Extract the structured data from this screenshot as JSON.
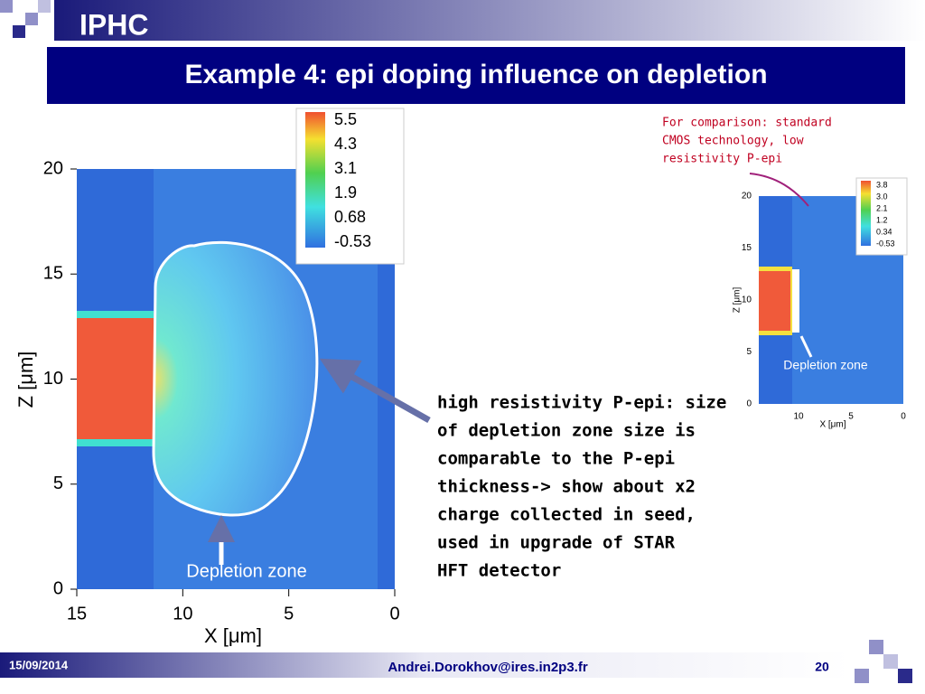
{
  "header": {
    "logo": "IPHC",
    "title": "Example 4: epi doping influence on depletion"
  },
  "main_plot": {
    "colorbar": [
      "5.5",
      "4.3",
      "3.1",
      "1.9",
      "0.68",
      "-0.53"
    ],
    "yticks": [
      "20",
      "15",
      "10",
      "5",
      "0"
    ],
    "xticks": [
      "15",
      "10",
      "5",
      "0"
    ],
    "ylabel": "Z [μm]",
    "xlabel": "X [μm]",
    "annotation": "Depletion zone"
  },
  "inset_plot": {
    "caption": [
      "For comparison: standard",
      "CMOS technology, low",
      "resistivity P-epi"
    ],
    "colorbar": [
      "3.8",
      "3.0",
      "2.1",
      "1.2",
      "0.34",
      "-0.53"
    ],
    "yticks": [
      "20",
      "15",
      "10",
      "5",
      "0"
    ],
    "xticks": [
      "10",
      "5",
      "0"
    ],
    "ylabel": "Z [μm]",
    "xlabel": "X [μm]",
    "annotation": "Depletion zone"
  },
  "body_text": [
    "high resistivity P-epi: size",
    "of depletion zone size is",
    "comparable to the P-epi",
    "thickness-> show about x2",
    "charge collected in seed,",
    "used in upgrade of STAR",
    "HFT detector"
  ],
  "footer": {
    "date": "15/09/2014",
    "email": "Andrei.Dorokhov@ires.in2p3.fr",
    "page": "20"
  }
}
